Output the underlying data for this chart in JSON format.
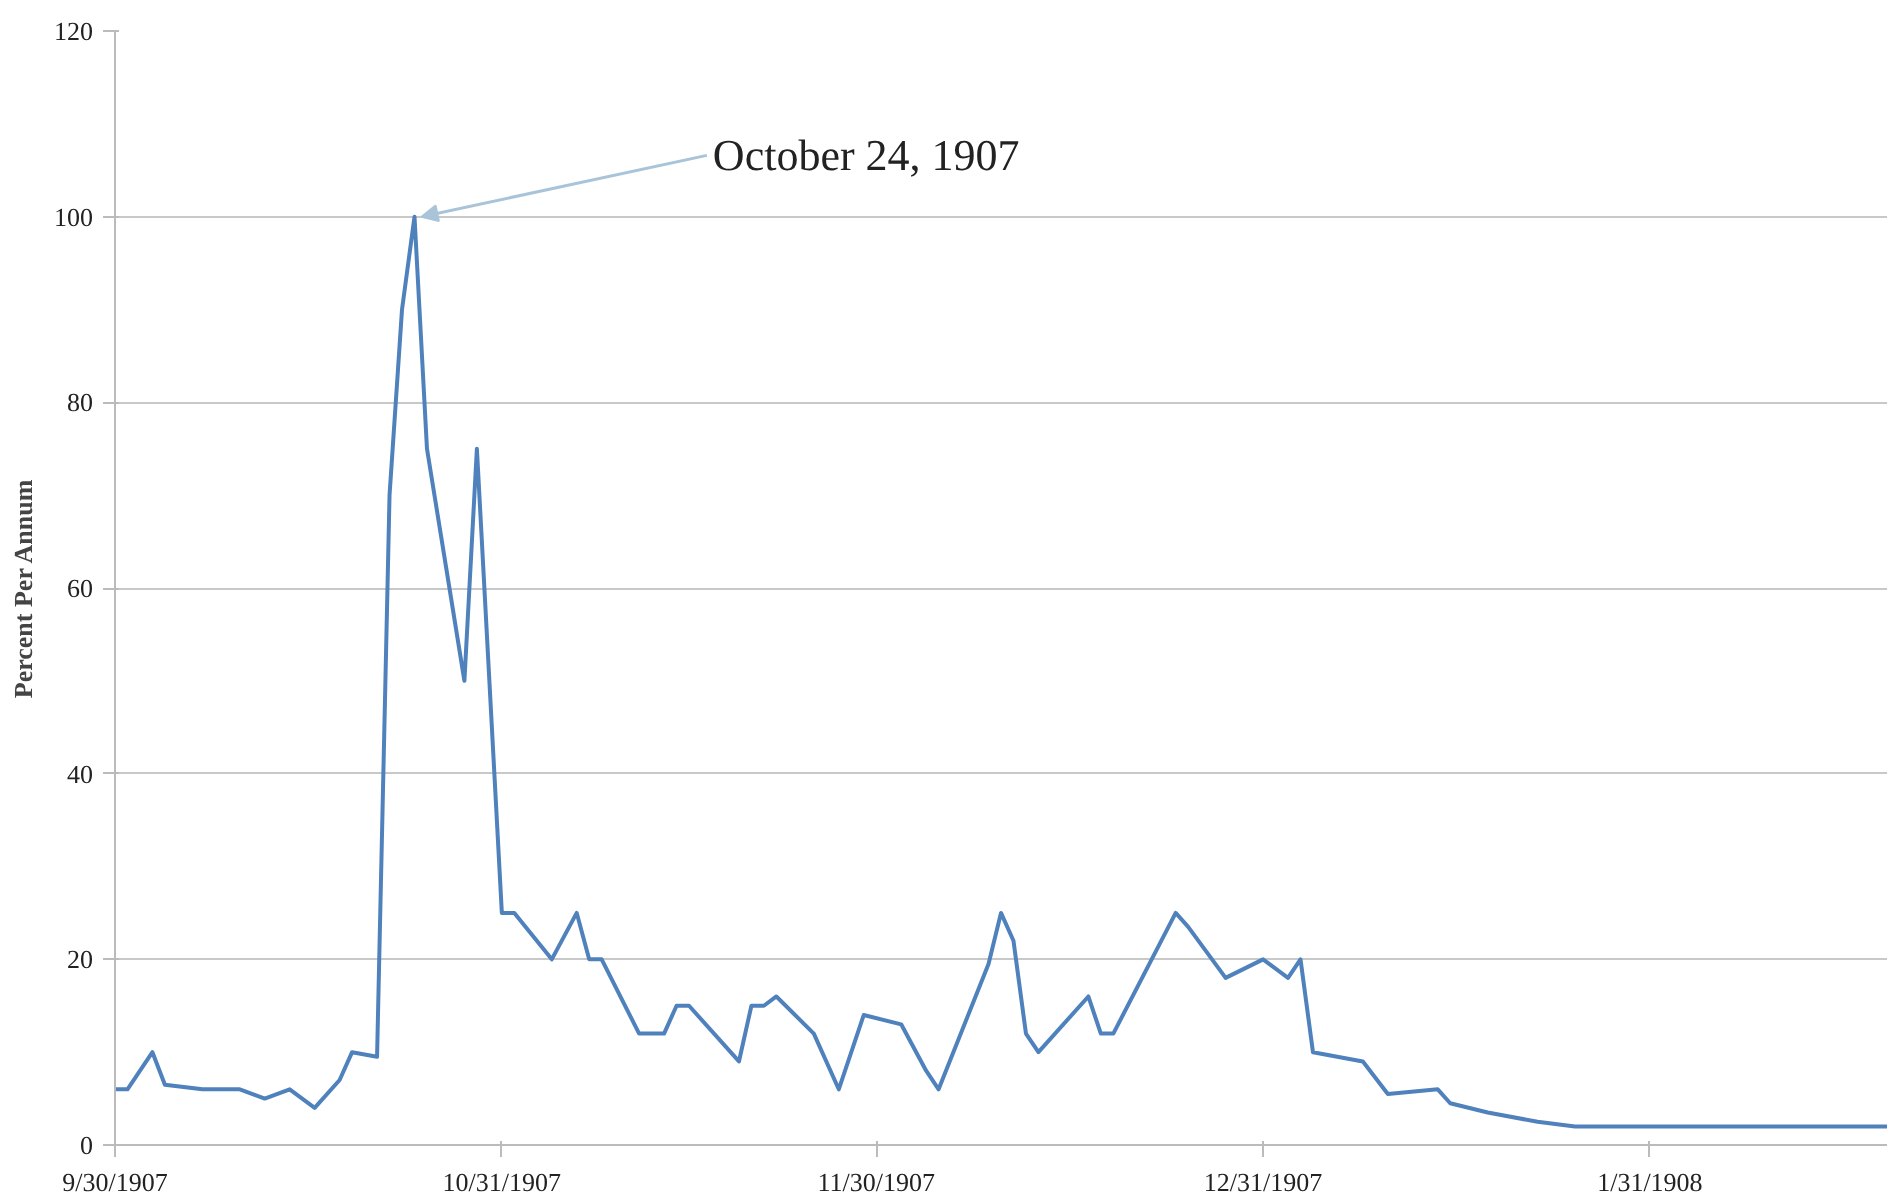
{
  "chart_data": {
    "type": "line",
    "ylabel": "Percent Per Annum",
    "x": [
      "1907-09-30",
      "1907-10-01",
      "1907-10-03",
      "1907-10-04",
      "1907-10-07",
      "1907-10-10",
      "1907-10-12",
      "1907-10-14",
      "1907-10-16",
      "1907-10-18",
      "1907-10-19",
      "1907-10-21",
      "1907-10-22",
      "1907-10-23",
      "1907-10-24",
      "1907-10-25",
      "1907-10-28",
      "1907-10-29",
      "1907-10-31",
      "1907-11-01",
      "1907-11-04",
      "1907-11-06",
      "1907-11-07",
      "1907-11-08",
      "1907-11-11",
      "1907-11-13",
      "1907-11-14",
      "1907-11-15",
      "1907-11-19",
      "1907-11-20",
      "1907-11-21",
      "1907-11-22",
      "1907-11-25",
      "1907-11-27",
      "1907-11-29",
      "1907-12-02",
      "1907-12-04",
      "1907-12-05",
      "1907-12-09",
      "1907-12-10",
      "1907-12-11",
      "1907-12-12",
      "1907-12-13",
      "1907-12-17",
      "1907-12-18",
      "1907-12-19",
      "1907-12-24",
      "1907-12-25",
      "1907-12-28",
      "1907-12-31",
      "1908-01-02",
      "1908-01-03",
      "1908-01-04",
      "1908-01-08",
      "1908-01-10",
      "1908-01-14",
      "1908-01-15",
      "1908-01-18",
      "1908-01-22",
      "1908-01-25",
      "1908-02-19"
    ],
    "series": [
      {
        "color": "#4f81bd",
        "values": [
          6,
          6,
          10,
          6.5,
          6,
          6,
          5,
          6,
          4,
          7,
          10,
          9.5,
          70,
          90,
          100,
          75,
          50,
          75,
          25,
          25,
          20,
          25,
          20,
          20,
          12,
          12,
          15,
          15,
          9,
          15,
          15,
          16,
          12,
          6,
          14,
          13,
          8,
          6,
          19.5,
          25,
          22,
          12,
          10,
          16,
          12,
          12,
          25,
          23.5,
          18,
          20,
          18,
          20,
          10,
          9,
          5.5,
          6,
          4.5,
          3.5,
          2.5,
          2,
          2
        ]
      }
    ],
    "xlim": [
      "1907-09-30",
      "1908-02-19"
    ],
    "xticks": [
      {
        "value": "1907-09-30",
        "label": "9/30/1907"
      },
      {
        "value": "1907-10-31",
        "label": "10/31/1907"
      },
      {
        "value": "1907-11-30",
        "label": "11/30/1907"
      },
      {
        "value": "1907-12-31",
        "label": "12/31/1907"
      },
      {
        "value": "1908-01-31",
        "label": "1/31/1908"
      }
    ],
    "ylim": [
      0,
      120
    ],
    "yticks": [
      0,
      20,
      40,
      60,
      80,
      100,
      120
    ],
    "grid": "y",
    "marker": "none",
    "line_style": "solid",
    "annotations": [
      {
        "text": "October 24, 1907",
        "x": "1907-10-24",
        "y": 100
      }
    ]
  }
}
